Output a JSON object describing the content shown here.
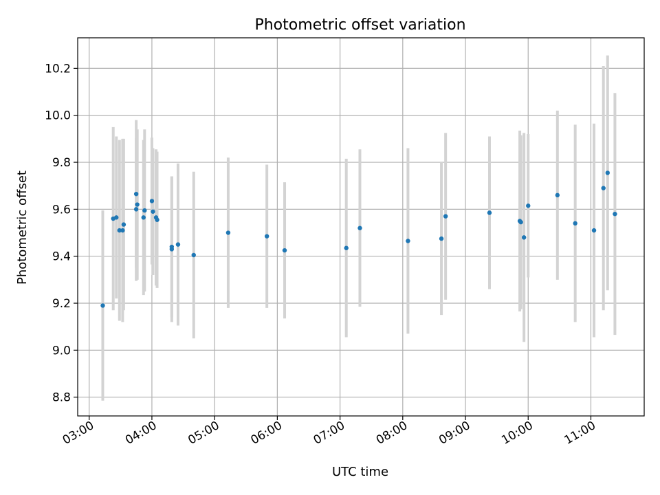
{
  "chart_data": {
    "type": "scatter",
    "title": "Photometric offset variation",
    "xlabel": "UTC time",
    "ylabel": "Photometric offset",
    "xlim": [
      "02:49",
      "11:51"
    ],
    "ylim": [
      8.72,
      10.33
    ],
    "grid": true,
    "x_ticks": [
      "03:00",
      "04:00",
      "05:00",
      "06:00",
      "07:00",
      "08:00",
      "09:00",
      "10:00",
      "11:00"
    ],
    "y_ticks": [
      8.8,
      9.0,
      9.2,
      9.4,
      9.6,
      9.8,
      10.0,
      10.2
    ],
    "colors": {
      "point": "#1f77b4",
      "errorbar": "#d3d3d3",
      "grid": "#b0b0b0"
    },
    "points": [
      {
        "x": "03:13",
        "y": 9.19,
        "err": 0.405
      },
      {
        "x": "03:23",
        "y": 9.56,
        "err": 0.39
      },
      {
        "x": "03:26",
        "y": 9.565,
        "err": 0.345
      },
      {
        "x": "03:29",
        "y": 9.51,
        "err": 0.385
      },
      {
        "x": "03:32",
        "y": 9.51,
        "err": 0.39
      },
      {
        "x": "03:33",
        "y": 9.535,
        "err": 0.365
      },
      {
        "x": "03:45",
        "y": 9.665,
        "err": 0.315
      },
      {
        "x": "03:45",
        "y": 9.6,
        "err": 0.305
      },
      {
        "x": "03:46",
        "y": 9.62,
        "err": 0.32
      },
      {
        "x": "03:52",
        "y": 9.565,
        "err": 0.33
      },
      {
        "x": "03:53",
        "y": 9.595,
        "err": 0.345
      },
      {
        "x": "04:00",
        "y": 9.635,
        "err": 0.27
      },
      {
        "x": "04:01",
        "y": 9.59,
        "err": 0.27
      },
      {
        "x": "04:04",
        "y": 9.565,
        "err": 0.29
      },
      {
        "x": "04:05",
        "y": 9.555,
        "err": 0.29
      },
      {
        "x": "04:19",
        "y": 9.44,
        "err": 0.3
      },
      {
        "x": "04:19",
        "y": 9.43,
        "err": 0.31
      },
      {
        "x": "04:25",
        "y": 9.45,
        "err": 0.345
      },
      {
        "x": "04:40",
        "y": 9.405,
        "err": 0.355
      },
      {
        "x": "05:13",
        "y": 9.5,
        "err": 0.32
      },
      {
        "x": "05:50",
        "y": 9.485,
        "err": 0.305
      },
      {
        "x": "06:07",
        "y": 9.425,
        "err": 0.29
      },
      {
        "x": "07:06",
        "y": 9.435,
        "err": 0.38
      },
      {
        "x": "07:19",
        "y": 9.52,
        "err": 0.335
      },
      {
        "x": "08:05",
        "y": 9.465,
        "err": 0.395
      },
      {
        "x": "08:37",
        "y": 9.475,
        "err": 0.325
      },
      {
        "x": "08:41",
        "y": 9.57,
        "err": 0.355
      },
      {
        "x": "09:23",
        "y": 9.585,
        "err": 0.325
      },
      {
        "x": "09:52",
        "y": 9.55,
        "err": 0.385
      },
      {
        "x": "09:53",
        "y": 9.545,
        "err": 0.37
      },
      {
        "x": "09:56",
        "y": 9.48,
        "err": 0.445
      },
      {
        "x": "10:00",
        "y": 9.615,
        "err": 0.305
      },
      {
        "x": "10:28",
        "y": 9.66,
        "err": 0.36
      },
      {
        "x": "10:45",
        "y": 9.54,
        "err": 0.42
      },
      {
        "x": "11:03",
        "y": 9.51,
        "err": 0.455
      },
      {
        "x": "11:12",
        "y": 9.69,
        "err": 0.52
      },
      {
        "x": "11:16",
        "y": 9.755,
        "err": 0.5
      },
      {
        "x": "11:23",
        "y": 9.58,
        "err": 0.515
      }
    ]
  }
}
